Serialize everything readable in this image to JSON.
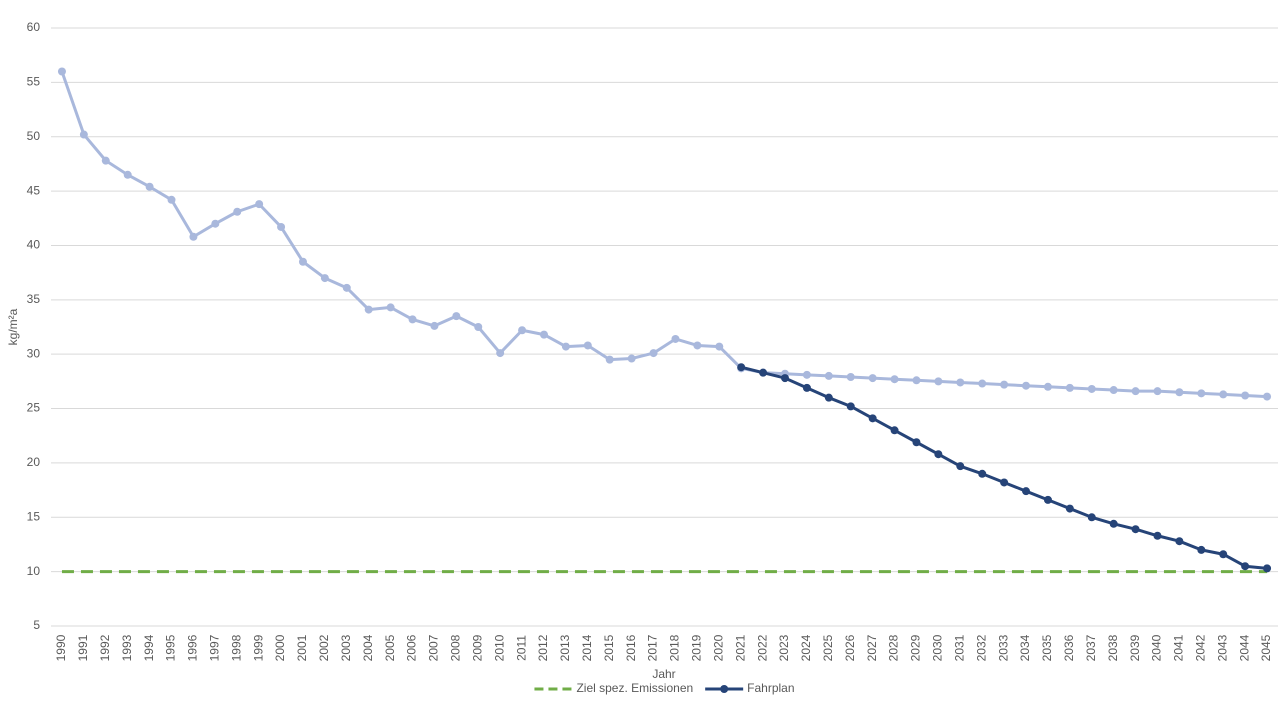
{
  "chart_data": {
    "type": "line",
    "y_label": "kg/m²a",
    "x_label": "Jahr",
    "categories": [
      "1990",
      "1991",
      "1992",
      "1993",
      "1994",
      "1995",
      "1996",
      "1997",
      "1998",
      "1999",
      "2000",
      "2001",
      "2002",
      "2003",
      "2004",
      "2005",
      "2006",
      "2007",
      "2008",
      "2009",
      "2010",
      "2011",
      "2012",
      "2013",
      "2014",
      "2015",
      "2016",
      "2017",
      "2018",
      "2019",
      "2020",
      "2021",
      "2022",
      "2023",
      "2024",
      "2025",
      "2026",
      "2027",
      "2028",
      "2029",
      "2030",
      "2031",
      "2032",
      "2033",
      "2034",
      "2035",
      "2036",
      "2037",
      "2038",
      "2039",
      "2040",
      "2041",
      "2042",
      "2043",
      "2044",
      "2045"
    ],
    "series": [
      {
        "name": "Ziel spez. Emissionen",
        "color": "#70ad47",
        "dashed": true,
        "markers": false,
        "values": [
          10,
          10,
          10,
          10,
          10,
          10,
          10,
          10,
          10,
          10,
          10,
          10,
          10,
          10,
          10,
          10,
          10,
          10,
          10,
          10,
          10,
          10,
          10,
          10,
          10,
          10,
          10,
          10,
          10,
          10,
          10,
          10,
          10,
          10,
          10,
          10,
          10,
          10,
          10,
          10,
          10,
          10,
          10,
          10,
          10,
          10,
          10,
          10,
          10,
          10,
          10,
          10,
          10,
          10,
          10,
          10
        ]
      },
      {
        "color": "#a9b8dc",
        "dashed": false,
        "markers": true,
        "values": [
          56,
          50.2,
          47.8,
          46.5,
          45.4,
          44.2,
          40.8,
          42.0,
          43.1,
          43.8,
          41.7,
          38.5,
          37.0,
          36.1,
          34.1,
          34.3,
          33.2,
          32.6,
          33.5,
          32.5,
          30.1,
          32.2,
          31.8,
          30.7,
          30.8,
          29.5,
          29.6,
          30.1,
          31.4,
          30.8,
          30.7,
          28.7,
          28.3,
          28.2,
          28.1,
          28.0,
          27.9,
          27.8,
          27.7,
          27.6,
          27.5,
          27.4,
          27.3,
          27.2,
          27.1,
          27.0,
          26.9,
          26.8,
          26.7,
          26.6,
          26.6,
          26.5,
          26.4,
          26.3,
          26.2,
          26.1
        ]
      },
      {
        "name": "Fahrplan",
        "color": "#264478",
        "dashed": false,
        "markers": true,
        "values": [
          null,
          null,
          null,
          null,
          null,
          null,
          null,
          null,
          null,
          null,
          null,
          null,
          null,
          null,
          null,
          null,
          null,
          null,
          null,
          null,
          null,
          null,
          null,
          null,
          null,
          null,
          null,
          null,
          null,
          null,
          null,
          28.8,
          28.3,
          27.8,
          26.9,
          26.0,
          25.2,
          24.1,
          23.0,
          21.9,
          20.8,
          19.7,
          19.0,
          18.2,
          17.4,
          16.6,
          15.8,
          15.0,
          14.4,
          13.9,
          13.3,
          12.8,
          12.0,
          11.6,
          10.5,
          10.3
        ]
      }
    ],
    "ylim": [
      5,
      60
    ],
    "yticks": [
      5,
      10,
      15,
      20,
      25,
      30,
      35,
      40,
      45,
      50,
      55,
      60
    ],
    "grid": true,
    "legend": "bottom"
  }
}
